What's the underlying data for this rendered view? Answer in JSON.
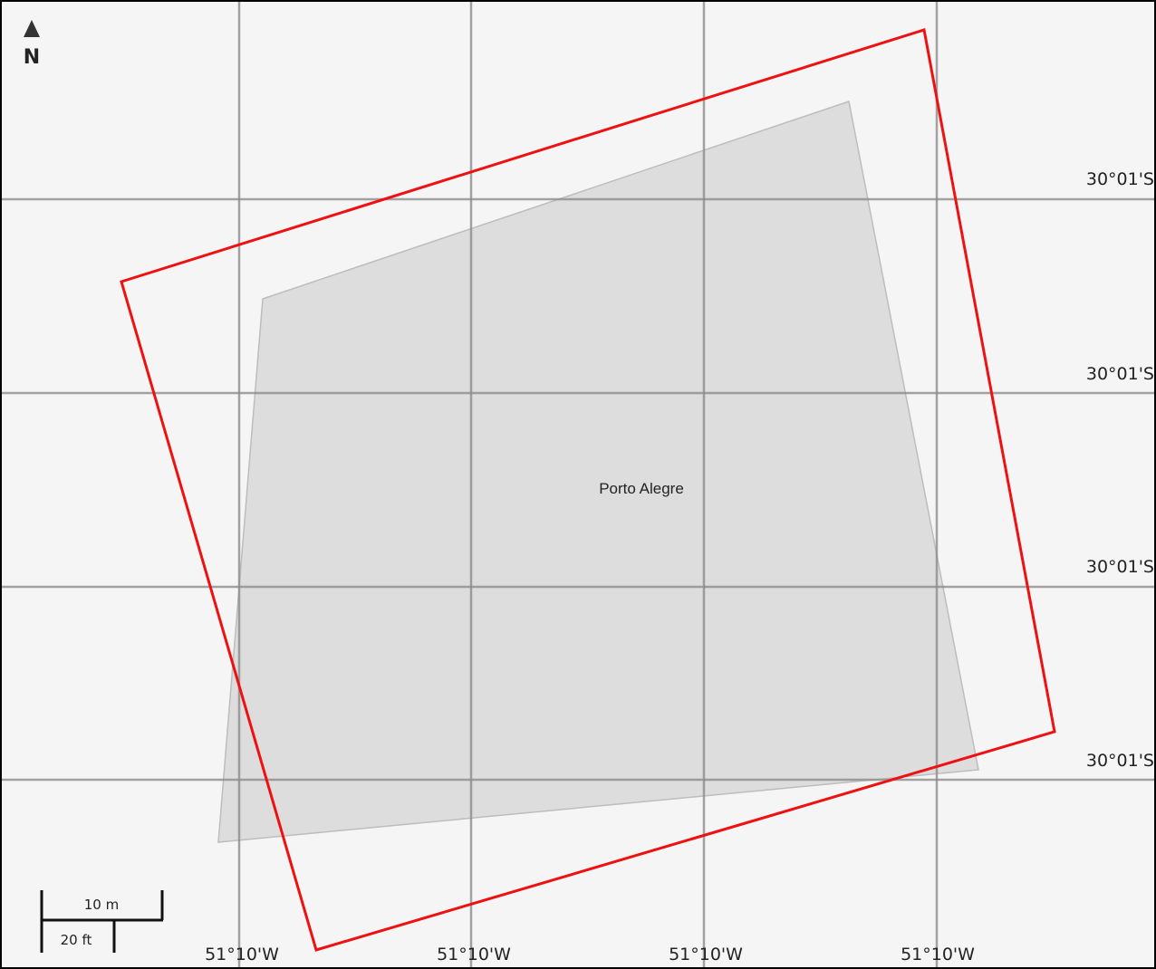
{
  "map": {
    "place_label": "Porto Alegre",
    "north_label": "N",
    "latitude_labels": [
      "30°01'S",
      "30°01'S",
      "30°01'S",
      "30°01'S"
    ],
    "longitude_labels": [
      "51°10'W",
      "51°10'W",
      "51°10'W",
      "51°10'W"
    ],
    "scale": {
      "metric": "10 m",
      "imperial": "20 ft"
    },
    "colors": {
      "background": "#f5f5f5",
      "grid": "#8c8c8c",
      "outline": "#ee1111",
      "footprint": "#c8c8c8",
      "frame": "#000000"
    }
  }
}
